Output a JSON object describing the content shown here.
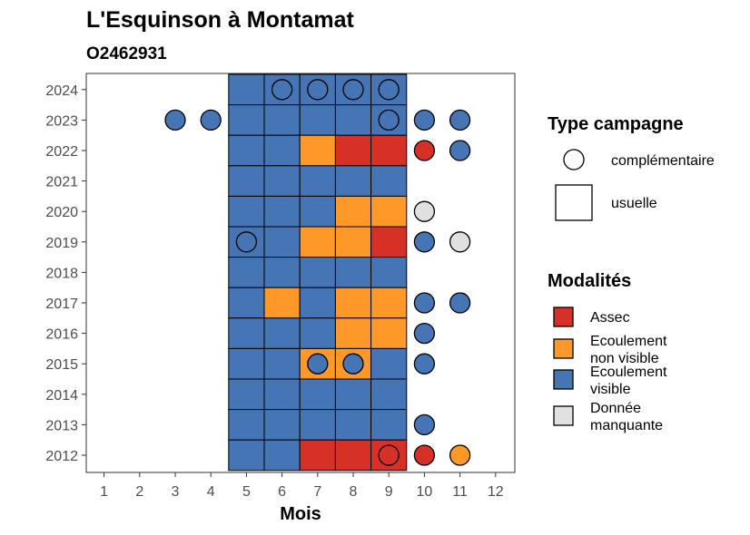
{
  "chart_data": {
    "type": "heatmap",
    "title": "L'Esquinson à Montamat",
    "subtitle": "O2462931",
    "xlabel": "Mois",
    "ylabel": "",
    "x_ticks": [
      "1",
      "2",
      "3",
      "4",
      "5",
      "6",
      "7",
      "8",
      "9",
      "10",
      "11",
      "12"
    ],
    "y_ticks": [
      "2012",
      "2013",
      "2014",
      "2015",
      "2016",
      "2017",
      "2018",
      "2019",
      "2020",
      "2021",
      "2022",
      "2023",
      "2024"
    ],
    "xlim": [
      0.5,
      12.5
    ],
    "grid": false,
    "colors": {
      "assec": "#d73027",
      "ecoulement_non_visible": "#fe9929",
      "ecoulement_visible": "#4575b4",
      "donnee_manquante": "#e0e0e0"
    },
    "legend_type": {
      "title": "Type campagne",
      "items": [
        {
          "key": "complementaire",
          "label": "complémentaire",
          "shape": "circle"
        },
        {
          "key": "usuelle",
          "label": "usuelle",
          "shape": "square"
        }
      ]
    },
    "legend_modalites": {
      "title": "Modalités",
      "items": [
        {
          "key": "assec",
          "lines": [
            "Assec"
          ]
        },
        {
          "key": "ecoulement_non_visible",
          "lines": [
            "Ecoulement",
            "non visible"
          ]
        },
        {
          "key": "ecoulement_visible",
          "lines": [
            "Ecoulement",
            "visible"
          ]
        },
        {
          "key": "donnee_manquante",
          "lines": [
            "Donnée",
            "manquante"
          ]
        }
      ]
    },
    "usuelle": [
      {
        "year": 2024,
        "month": 5,
        "mod": "ecoulement_visible"
      },
      {
        "year": 2024,
        "month": 6,
        "mod": "ecoulement_visible"
      },
      {
        "year": 2024,
        "month": 7,
        "mod": "ecoulement_visible"
      },
      {
        "year": 2024,
        "month": 8,
        "mod": "ecoulement_visible"
      },
      {
        "year": 2024,
        "month": 9,
        "mod": "ecoulement_visible"
      },
      {
        "year": 2023,
        "month": 5,
        "mod": "ecoulement_visible"
      },
      {
        "year": 2023,
        "month": 6,
        "mod": "ecoulement_visible"
      },
      {
        "year": 2023,
        "month": 7,
        "mod": "ecoulement_visible"
      },
      {
        "year": 2023,
        "month": 8,
        "mod": "ecoulement_visible"
      },
      {
        "year": 2023,
        "month": 9,
        "mod": "ecoulement_visible"
      },
      {
        "year": 2022,
        "month": 5,
        "mod": "ecoulement_visible"
      },
      {
        "year": 2022,
        "month": 6,
        "mod": "ecoulement_visible"
      },
      {
        "year": 2022,
        "month": 7,
        "mod": "ecoulement_non_visible"
      },
      {
        "year": 2022,
        "month": 8,
        "mod": "assec"
      },
      {
        "year": 2022,
        "month": 9,
        "mod": "assec"
      },
      {
        "year": 2021,
        "month": 5,
        "mod": "ecoulement_visible"
      },
      {
        "year": 2021,
        "month": 6,
        "mod": "ecoulement_visible"
      },
      {
        "year": 2021,
        "month": 7,
        "mod": "ecoulement_visible"
      },
      {
        "year": 2021,
        "month": 8,
        "mod": "ecoulement_visible"
      },
      {
        "year": 2021,
        "month": 9,
        "mod": "ecoulement_visible"
      },
      {
        "year": 2020,
        "month": 5,
        "mod": "ecoulement_visible"
      },
      {
        "year": 2020,
        "month": 6,
        "mod": "ecoulement_visible"
      },
      {
        "year": 2020,
        "month": 7,
        "mod": "ecoulement_visible"
      },
      {
        "year": 2020,
        "month": 8,
        "mod": "ecoulement_non_visible"
      },
      {
        "year": 2020,
        "month": 9,
        "mod": "ecoulement_non_visible"
      },
      {
        "year": 2019,
        "month": 5,
        "mod": "ecoulement_visible"
      },
      {
        "year": 2019,
        "month": 6,
        "mod": "ecoulement_visible"
      },
      {
        "year": 2019,
        "month": 7,
        "mod": "ecoulement_non_visible"
      },
      {
        "year": 2019,
        "month": 8,
        "mod": "ecoulement_non_visible"
      },
      {
        "year": 2019,
        "month": 9,
        "mod": "assec"
      },
      {
        "year": 2018,
        "month": 5,
        "mod": "ecoulement_visible"
      },
      {
        "year": 2018,
        "month": 6,
        "mod": "ecoulement_visible"
      },
      {
        "year": 2018,
        "month": 7,
        "mod": "ecoulement_visible"
      },
      {
        "year": 2018,
        "month": 8,
        "mod": "ecoulement_visible"
      },
      {
        "year": 2018,
        "month": 9,
        "mod": "ecoulement_visible"
      },
      {
        "year": 2017,
        "month": 5,
        "mod": "ecoulement_visible"
      },
      {
        "year": 2017,
        "month": 6,
        "mod": "ecoulement_non_visible"
      },
      {
        "year": 2017,
        "month": 7,
        "mod": "ecoulement_visible"
      },
      {
        "year": 2017,
        "month": 8,
        "mod": "ecoulement_non_visible"
      },
      {
        "year": 2017,
        "month": 9,
        "mod": "ecoulement_non_visible"
      },
      {
        "year": 2016,
        "month": 5,
        "mod": "ecoulement_visible"
      },
      {
        "year": 2016,
        "month": 6,
        "mod": "ecoulement_visible"
      },
      {
        "year": 2016,
        "month": 7,
        "mod": "ecoulement_visible"
      },
      {
        "year": 2016,
        "month": 8,
        "mod": "ecoulement_non_visible"
      },
      {
        "year": 2016,
        "month": 9,
        "mod": "ecoulement_non_visible"
      },
      {
        "year": 2015,
        "month": 5,
        "mod": "ecoulement_visible"
      },
      {
        "year": 2015,
        "month": 6,
        "mod": "ecoulement_visible"
      },
      {
        "year": 2015,
        "month": 7,
        "mod": "ecoulement_non_visible"
      },
      {
        "year": 2015,
        "month": 8,
        "mod": "ecoulement_non_visible"
      },
      {
        "year": 2015,
        "month": 9,
        "mod": "ecoulement_visible"
      },
      {
        "year": 2014,
        "month": 5,
        "mod": "ecoulement_visible"
      },
      {
        "year": 2014,
        "month": 6,
        "mod": "ecoulement_visible"
      },
      {
        "year": 2014,
        "month": 7,
        "mod": "ecoulement_visible"
      },
      {
        "year": 2014,
        "month": 8,
        "mod": "ecoulement_visible"
      },
      {
        "year": 2014,
        "month": 9,
        "mod": "ecoulement_visible"
      },
      {
        "year": 2013,
        "month": 5,
        "mod": "ecoulement_visible"
      },
      {
        "year": 2013,
        "month": 6,
        "mod": "ecoulement_visible"
      },
      {
        "year": 2013,
        "month": 7,
        "mod": "ecoulement_visible"
      },
      {
        "year": 2013,
        "month": 8,
        "mod": "ecoulement_visible"
      },
      {
        "year": 2013,
        "month": 9,
        "mod": "ecoulement_visible"
      },
      {
        "year": 2012,
        "month": 5,
        "mod": "ecoulement_visible"
      },
      {
        "year": 2012,
        "month": 6,
        "mod": "ecoulement_visible"
      },
      {
        "year": 2012,
        "month": 7,
        "mod": "assec"
      },
      {
        "year": 2012,
        "month": 8,
        "mod": "assec"
      },
      {
        "year": 2012,
        "month": 9,
        "mod": "assec"
      }
    ],
    "complementaire": [
      {
        "year": 2024,
        "month": 6,
        "mod": "ecoulement_visible"
      },
      {
        "year": 2024,
        "month": 7,
        "mod": "ecoulement_visible"
      },
      {
        "year": 2024,
        "month": 8,
        "mod": "ecoulement_visible"
      },
      {
        "year": 2024,
        "month": 9,
        "mod": "ecoulement_visible"
      },
      {
        "year": 2023,
        "month": 3,
        "mod": "ecoulement_visible"
      },
      {
        "year": 2023,
        "month": 4,
        "mod": "ecoulement_visible"
      },
      {
        "year": 2023,
        "month": 9,
        "mod": "ecoulement_visible"
      },
      {
        "year": 2023,
        "month": 10,
        "mod": "ecoulement_visible"
      },
      {
        "year": 2023,
        "month": 11,
        "mod": "ecoulement_visible"
      },
      {
        "year": 2022,
        "month": 10,
        "mod": "assec"
      },
      {
        "year": 2022,
        "month": 11,
        "mod": "ecoulement_visible"
      },
      {
        "year": 2020,
        "month": 10,
        "mod": "donnee_manquante"
      },
      {
        "year": 2019,
        "month": 5,
        "mod": "ecoulement_visible"
      },
      {
        "year": 2019,
        "month": 10,
        "mod": "ecoulement_visible"
      },
      {
        "year": 2019,
        "month": 11,
        "mod": "donnee_manquante"
      },
      {
        "year": 2017,
        "month": 10,
        "mod": "ecoulement_visible"
      },
      {
        "year": 2017,
        "month": 11,
        "mod": "ecoulement_visible"
      },
      {
        "year": 2016,
        "month": 10,
        "mod": "ecoulement_visible"
      },
      {
        "year": 2015,
        "month": 7,
        "mod": "ecoulement_visible"
      },
      {
        "year": 2015,
        "month": 8,
        "mod": "ecoulement_visible"
      },
      {
        "year": 2015,
        "month": 10,
        "mod": "ecoulement_visible"
      },
      {
        "year": 2013,
        "month": 10,
        "mod": "ecoulement_visible"
      },
      {
        "year": 2012,
        "month": 9,
        "mod": "assec"
      },
      {
        "year": 2012,
        "month": 10,
        "mod": "assec"
      },
      {
        "year": 2012,
        "month": 11,
        "mod": "ecoulement_non_visible"
      }
    ]
  }
}
